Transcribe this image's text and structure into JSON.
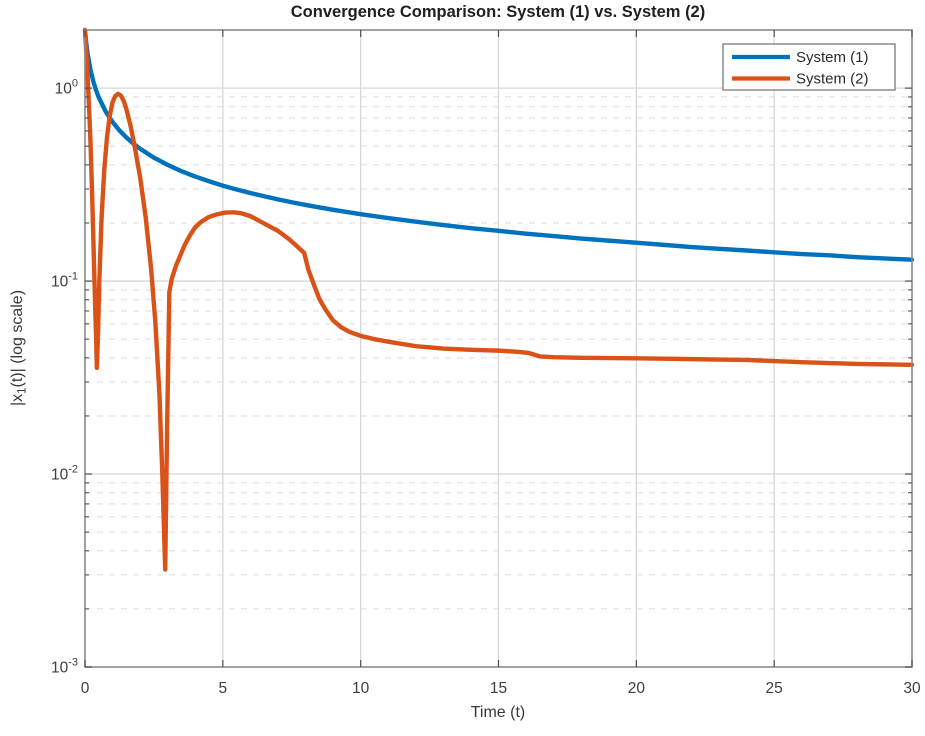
{
  "figure": {
    "background": "#ffffff"
  },
  "chart_data": {
    "type": "line",
    "title": "Convergence Comparison: System (1) vs. System (2)",
    "xlabel": "Time (t)",
    "ylabel": "|x_1(t)| (log scale)",
    "ylabel_parts": {
      "pre": "|x",
      "sub": "1",
      "post": "(t)| (log scale)"
    },
    "xscale": "linear",
    "yscale": "log",
    "xlim": [
      0,
      30
    ],
    "ylim": [
      0.001,
      2
    ],
    "xticks": [
      0,
      5,
      10,
      15,
      20,
      25,
      30
    ],
    "yticks": [
      {
        "value": 1,
        "label_base": "10",
        "label_exp": "0"
      },
      {
        "value": 0.1,
        "label_base": "10",
        "label_exp": "-1"
      },
      {
        "value": 0.01,
        "label_base": "10",
        "label_exp": "-2"
      },
      {
        "value": 0.001,
        "label_base": "10",
        "label_exp": "-3"
      }
    ],
    "grid": {
      "major": true,
      "minor": true,
      "minor_style": "dashed"
    },
    "legend": {
      "position": "northeast",
      "entries": [
        "System (1)",
        "System (2)"
      ]
    },
    "series": [
      {
        "name": "System (1)",
        "color": "#0072BD",
        "points": [
          [
            0,
            2.0
          ],
          [
            0.05,
            1.69
          ],
          [
            0.1,
            1.491
          ],
          [
            0.2,
            1.24
          ],
          [
            0.3,
            1.085
          ],
          [
            0.4,
            0.976
          ],
          [
            0.5,
            0.894
          ],
          [
            0.75,
            0.756
          ],
          [
            1,
            0.667
          ],
          [
            1.25,
            0.603
          ],
          [
            1.5,
            0.555
          ],
          [
            1.75,
            0.516
          ],
          [
            2,
            0.485
          ],
          [
            2.5,
            0.436
          ],
          [
            3,
            0.4
          ],
          [
            3.5,
            0.371
          ],
          [
            4,
            0.348
          ],
          [
            4.5,
            0.329
          ],
          [
            5,
            0.312
          ],
          [
            5.5,
            0.298
          ],
          [
            6,
            0.286
          ],
          [
            6.5,
            0.275
          ],
          [
            7,
            0.265
          ],
          [
            7.5,
            0.256
          ],
          [
            8,
            0.248
          ],
          [
            9,
            0.234
          ],
          [
            10,
            0.222
          ],
          [
            11,
            0.212
          ],
          [
            12,
            0.203
          ],
          [
            13,
            0.195
          ],
          [
            14,
            0.188
          ],
          [
            15,
            0.182
          ],
          [
            16,
            0.176
          ],
          [
            17,
            0.171
          ],
          [
            18,
            0.166
          ],
          [
            19,
            0.162
          ],
          [
            20,
            0.158
          ],
          [
            21,
            0.154
          ],
          [
            22,
            0.15
          ],
          [
            23,
            0.147
          ],
          [
            24,
            0.144
          ],
          [
            25,
            0.141
          ],
          [
            26,
            0.138
          ],
          [
            27,
            0.136
          ],
          [
            28,
            0.133
          ],
          [
            29,
            0.131
          ],
          [
            30,
            0.129
          ]
        ]
      },
      {
        "name": "System (2)",
        "color": "#D95319",
        "points": [
          [
            0,
            2.0
          ],
          [
            0.05,
            1.5
          ],
          [
            0.1,
            1.1
          ],
          [
            0.15,
            0.78
          ],
          [
            0.2,
            0.52
          ],
          [
            0.25,
            0.31
          ],
          [
            0.3,
            0.17
          ],
          [
            0.35,
            0.092
          ],
          [
            0.4,
            0.052
          ],
          [
            0.43,
            0.0355
          ],
          [
            0.47,
            0.052
          ],
          [
            0.52,
            0.1
          ],
          [
            0.6,
            0.21
          ],
          [
            0.7,
            0.38
          ],
          [
            0.8,
            0.56
          ],
          [
            0.9,
            0.72
          ],
          [
            1.0,
            0.845
          ],
          [
            1.1,
            0.91
          ],
          [
            1.2,
            0.934
          ],
          [
            1.3,
            0.915
          ],
          [
            1.4,
            0.86
          ],
          [
            1.5,
            0.78
          ],
          [
            1.65,
            0.64
          ],
          [
            1.8,
            0.5
          ],
          [
            2.0,
            0.345
          ],
          [
            2.2,
            0.215
          ],
          [
            2.4,
            0.115
          ],
          [
            2.55,
            0.062
          ],
          [
            2.7,
            0.026
          ],
          [
            2.8,
            0.0105
          ],
          [
            2.91,
            0.0032
          ],
          [
            2.98,
            0.018
          ],
          [
            3.06,
            0.088
          ],
          [
            3.15,
            0.103
          ],
          [
            3.3,
            0.12
          ],
          [
            3.45,
            0.135
          ],
          [
            3.6,
            0.152
          ],
          [
            3.8,
            0.172
          ],
          [
            4.0,
            0.19
          ],
          [
            4.2,
            0.202
          ],
          [
            4.5,
            0.215
          ],
          [
            4.8,
            0.222
          ],
          [
            5.1,
            0.2265
          ],
          [
            5.4,
            0.227
          ],
          [
            5.7,
            0.224
          ],
          [
            6.0,
            0.217
          ],
          [
            6.3,
            0.206
          ],
          [
            6.6,
            0.195
          ],
          [
            7.0,
            0.182
          ],
          [
            7.4,
            0.165
          ],
          [
            7.7,
            0.151
          ],
          [
            7.95,
            0.14
          ],
          [
            8.1,
            0.115
          ],
          [
            8.3,
            0.096
          ],
          [
            8.5,
            0.081
          ],
          [
            8.7,
            0.072
          ],
          [
            9.0,
            0.0625
          ],
          [
            9.3,
            0.0575
          ],
          [
            9.6,
            0.0545
          ],
          [
            10,
            0.052
          ],
          [
            10.5,
            0.05
          ],
          [
            11,
            0.0485
          ],
          [
            11.5,
            0.0472
          ],
          [
            12,
            0.046
          ],
          [
            13,
            0.0447
          ],
          [
            14,
            0.044
          ],
          [
            15,
            0.0436
          ],
          [
            15.7,
            0.043
          ],
          [
            16.1,
            0.0424
          ],
          [
            16.5,
            0.0407
          ],
          [
            17,
            0.0403
          ],
          [
            18,
            0.04
          ],
          [
            19,
            0.0399
          ],
          [
            20,
            0.0398
          ],
          [
            21,
            0.0396
          ],
          [
            22,
            0.0394
          ],
          [
            23,
            0.0392
          ],
          [
            24,
            0.039
          ],
          [
            25,
            0.0385
          ],
          [
            26,
            0.038
          ],
          [
            27,
            0.0376
          ],
          [
            28,
            0.0372
          ],
          [
            29,
            0.037
          ],
          [
            30,
            0.0368
          ]
        ]
      }
    ],
    "style_colors": {
      "major_grid": "#d6d6d6",
      "minor_grid": "#dedede",
      "frame": "#8a8a8a",
      "ticks": "#4f4f4f"
    }
  }
}
